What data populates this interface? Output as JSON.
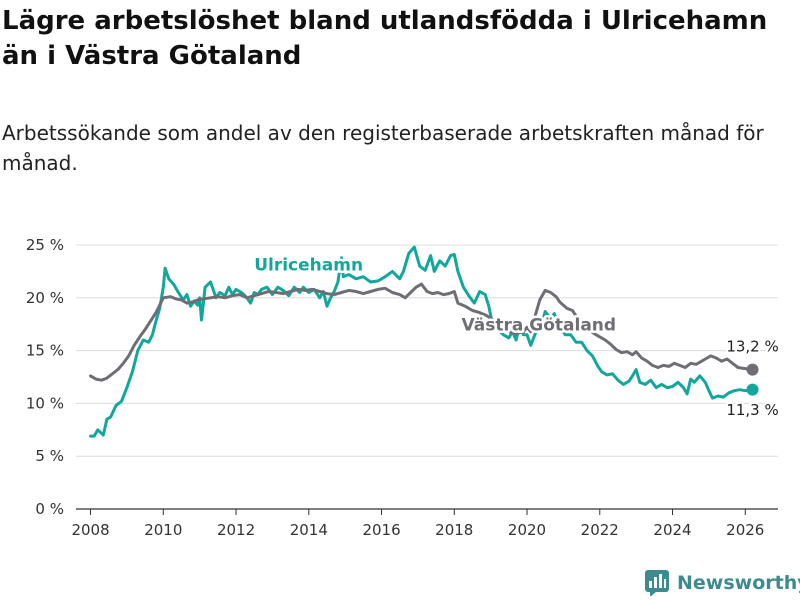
{
  "header": {
    "title": "Lägre arbetslöshet bland utlandsfödda i Ulricehamn än i Västra Götaland",
    "subtitle": "Arbetssökande som andel av den registerbaserade arbetskraften månad för månad."
  },
  "brand": {
    "name": "Newsworthy"
  },
  "chart_data": {
    "type": "line",
    "title": "Lägre arbetslöshet bland utlandsfödda i Ulricehamn än i Västra Götaland",
    "subtitle": "Arbetssökande som andel av den registerbaserade arbetskraften månad för månad.",
    "xlabel": "",
    "ylabel": "",
    "xlim": [
      2007.6,
      2026.9
    ],
    "ylim": [
      0,
      25
    ],
    "grid": true,
    "x_ticks": [
      2008,
      2010,
      2012,
      2014,
      2016,
      2018,
      2020,
      2022,
      2024,
      2026
    ],
    "x_tick_labels": [
      "2008",
      "2010",
      "2012",
      "2014",
      "2016",
      "2018",
      "2020",
      "2022",
      "2024",
      "2026"
    ],
    "y_ticks": [
      0,
      5,
      10,
      15,
      20,
      25
    ],
    "y_tick_labels": [
      "0 %",
      "5 %",
      "10 %",
      "15 %",
      "20 %",
      "25 %"
    ],
    "series": [
      {
        "name": "Ulricehamn",
        "color": "#12a79d",
        "label": "Ulricehamn",
        "end_label": "11,3 %",
        "points": [
          [
            2008.0,
            6.9
          ],
          [
            2008.1,
            6.9
          ],
          [
            2008.2,
            7.5
          ],
          [
            2008.35,
            7.0
          ],
          [
            2008.45,
            8.5
          ],
          [
            2008.55,
            8.7
          ],
          [
            2008.7,
            9.8
          ],
          [
            2008.85,
            10.2
          ],
          [
            2009.0,
            11.5
          ],
          [
            2009.15,
            13.0
          ],
          [
            2009.3,
            15.0
          ],
          [
            2009.45,
            16.0
          ],
          [
            2009.6,
            15.8
          ],
          [
            2009.7,
            16.5
          ],
          [
            2009.8,
            17.8
          ],
          [
            2009.9,
            19.0
          ],
          [
            2010.0,
            21.0
          ],
          [
            2010.05,
            22.8
          ],
          [
            2010.15,
            21.8
          ],
          [
            2010.3,
            21.2
          ],
          [
            2010.4,
            20.6
          ],
          [
            2010.55,
            19.8
          ],
          [
            2010.65,
            20.3
          ],
          [
            2010.75,
            19.2
          ],
          [
            2010.85,
            19.7
          ],
          [
            2010.95,
            19.3
          ],
          [
            2011.0,
            20.0
          ],
          [
            2011.05,
            17.9
          ],
          [
            2011.15,
            21.0
          ],
          [
            2011.3,
            21.5
          ],
          [
            2011.45,
            20.0
          ],
          [
            2011.55,
            20.5
          ],
          [
            2011.7,
            20.2
          ],
          [
            2011.8,
            21.0
          ],
          [
            2011.9,
            20.3
          ],
          [
            2012.0,
            20.8
          ],
          [
            2012.15,
            20.5
          ],
          [
            2012.3,
            20.0
          ],
          [
            2012.4,
            19.5
          ],
          [
            2012.5,
            20.5
          ],
          [
            2012.6,
            20.3
          ],
          [
            2012.7,
            20.8
          ],
          [
            2012.85,
            21.0
          ],
          [
            2013.0,
            20.3
          ],
          [
            2013.15,
            21.0
          ],
          [
            2013.3,
            20.7
          ],
          [
            2013.45,
            20.2
          ],
          [
            2013.6,
            21.0
          ],
          [
            2013.75,
            20.5
          ],
          [
            2013.85,
            21.0
          ],
          [
            2014.0,
            20.5
          ],
          [
            2014.15,
            20.8
          ],
          [
            2014.3,
            20.0
          ],
          [
            2014.4,
            20.6
          ],
          [
            2014.5,
            19.2
          ],
          [
            2014.6,
            20.0
          ],
          [
            2014.7,
            20.6
          ],
          [
            2014.8,
            21.5
          ],
          [
            2014.9,
            23.8
          ],
          [
            2014.95,
            22.0
          ],
          [
            2015.1,
            22.2
          ],
          [
            2015.3,
            21.8
          ],
          [
            2015.5,
            22.0
          ],
          [
            2015.7,
            21.5
          ],
          [
            2015.9,
            21.6
          ],
          [
            2016.1,
            22.0
          ],
          [
            2016.3,
            22.5
          ],
          [
            2016.5,
            21.8
          ],
          [
            2016.6,
            22.5
          ],
          [
            2016.75,
            24.2
          ],
          [
            2016.9,
            24.8
          ],
          [
            2017.05,
            23.0
          ],
          [
            2017.2,
            22.6
          ],
          [
            2017.35,
            24.0
          ],
          [
            2017.45,
            22.5
          ],
          [
            2017.6,
            23.5
          ],
          [
            2017.75,
            23.0
          ],
          [
            2017.9,
            24.0
          ],
          [
            2018.0,
            24.1
          ],
          [
            2018.1,
            22.5
          ],
          [
            2018.25,
            21.0
          ],
          [
            2018.4,
            20.2
          ],
          [
            2018.55,
            19.5
          ],
          [
            2018.7,
            20.6
          ],
          [
            2018.85,
            20.3
          ],
          [
            2018.95,
            19.2
          ],
          [
            2019.05,
            17.5
          ],
          [
            2019.2,
            17.0
          ],
          [
            2019.35,
            16.5
          ],
          [
            2019.5,
            16.2
          ],
          [
            2019.6,
            16.8
          ],
          [
            2019.7,
            16.0
          ],
          [
            2019.8,
            17.5
          ],
          [
            2019.9,
            16.5
          ],
          [
            2020.0,
            16.5
          ],
          [
            2020.1,
            15.5
          ],
          [
            2020.25,
            16.8
          ],
          [
            2020.4,
            17.5
          ],
          [
            2020.5,
            18.7
          ],
          [
            2020.65,
            18.0
          ],
          [
            2020.75,
            18.5
          ],
          [
            2020.85,
            17.5
          ],
          [
            2020.95,
            17.0
          ],
          [
            2021.05,
            16.5
          ],
          [
            2021.2,
            16.5
          ],
          [
            2021.35,
            15.8
          ],
          [
            2021.5,
            15.8
          ],
          [
            2021.65,
            15.0
          ],
          [
            2021.8,
            14.5
          ],
          [
            2021.95,
            13.5
          ],
          [
            2022.05,
            13.0
          ],
          [
            2022.2,
            12.7
          ],
          [
            2022.35,
            12.8
          ],
          [
            2022.5,
            12.2
          ],
          [
            2022.65,
            11.8
          ],
          [
            2022.8,
            12.1
          ],
          [
            2022.9,
            12.6
          ],
          [
            2023.0,
            13.2
          ],
          [
            2023.1,
            12.0
          ],
          [
            2023.25,
            11.8
          ],
          [
            2023.4,
            12.2
          ],
          [
            2023.55,
            11.5
          ],
          [
            2023.7,
            11.8
          ],
          [
            2023.85,
            11.5
          ],
          [
            2024.0,
            11.6
          ],
          [
            2024.15,
            12.0
          ],
          [
            2024.3,
            11.5
          ],
          [
            2024.4,
            10.9
          ],
          [
            2024.5,
            12.3
          ],
          [
            2024.6,
            12.0
          ],
          [
            2024.75,
            12.6
          ],
          [
            2024.9,
            12.0
          ],
          [
            2025.0,
            11.2
          ],
          [
            2025.1,
            10.5
          ],
          [
            2025.25,
            10.7
          ],
          [
            2025.4,
            10.6
          ],
          [
            2025.55,
            11.0
          ],
          [
            2025.7,
            11.2
          ],
          [
            2025.85,
            11.3
          ],
          [
            2026.0,
            11.2
          ],
          [
            2026.2,
            11.3
          ]
        ]
      },
      {
        "name": "Västra Götaland",
        "color": "#6e6e74",
        "label": "Västra Götaland",
        "end_label": "13,2 %",
        "points": [
          [
            2008.0,
            12.6
          ],
          [
            2008.15,
            12.3
          ],
          [
            2008.3,
            12.2
          ],
          [
            2008.45,
            12.4
          ],
          [
            2008.6,
            12.8
          ],
          [
            2008.75,
            13.2
          ],
          [
            2008.9,
            13.8
          ],
          [
            2009.05,
            14.5
          ],
          [
            2009.2,
            15.5
          ],
          [
            2009.35,
            16.3
          ],
          [
            2009.5,
            17.0
          ],
          [
            2009.65,
            17.8
          ],
          [
            2009.8,
            18.6
          ],
          [
            2009.9,
            19.3
          ],
          [
            2010.0,
            20.0
          ],
          [
            2010.2,
            20.1
          ],
          [
            2010.35,
            19.9
          ],
          [
            2010.5,
            19.8
          ],
          [
            2010.65,
            19.5
          ],
          [
            2010.8,
            19.6
          ],
          [
            2010.95,
            19.8
          ],
          [
            2011.1,
            19.9
          ],
          [
            2011.3,
            20.0
          ],
          [
            2011.5,
            20.1
          ],
          [
            2011.7,
            20.0
          ],
          [
            2011.9,
            20.2
          ],
          [
            2012.1,
            20.3
          ],
          [
            2012.3,
            20.0
          ],
          [
            2012.5,
            20.2
          ],
          [
            2012.7,
            20.4
          ],
          [
            2012.9,
            20.6
          ],
          [
            2013.1,
            20.5
          ],
          [
            2013.3,
            20.4
          ],
          [
            2013.5,
            20.6
          ],
          [
            2013.7,
            20.8
          ],
          [
            2013.9,
            20.7
          ],
          [
            2014.1,
            20.8
          ],
          [
            2014.3,
            20.6
          ],
          [
            2014.5,
            20.4
          ],
          [
            2014.7,
            20.3
          ],
          [
            2014.9,
            20.5
          ],
          [
            2015.1,
            20.7
          ],
          [
            2015.3,
            20.6
          ],
          [
            2015.5,
            20.4
          ],
          [
            2015.7,
            20.6
          ],
          [
            2015.9,
            20.8
          ],
          [
            2016.1,
            20.9
          ],
          [
            2016.3,
            20.5
          ],
          [
            2016.5,
            20.3
          ],
          [
            2016.65,
            20.0
          ],
          [
            2016.8,
            20.5
          ],
          [
            2016.95,
            21.0
          ],
          [
            2017.1,
            21.3
          ],
          [
            2017.25,
            20.6
          ],
          [
            2017.4,
            20.4
          ],
          [
            2017.55,
            20.5
          ],
          [
            2017.7,
            20.3
          ],
          [
            2017.85,
            20.4
          ],
          [
            2018.0,
            20.6
          ],
          [
            2018.1,
            19.5
          ],
          [
            2018.3,
            19.2
          ],
          [
            2018.5,
            18.8
          ],
          [
            2018.7,
            18.6
          ],
          [
            2018.9,
            18.3
          ],
          [
            2019.1,
            17.8
          ],
          [
            2019.3,
            17.2
          ],
          [
            2019.5,
            16.8
          ],
          [
            2019.7,
            16.6
          ],
          [
            2019.9,
            16.8
          ],
          [
            2020.0,
            17.2
          ],
          [
            2020.1,
            16.8
          ],
          [
            2020.2,
            18.0
          ],
          [
            2020.35,
            19.8
          ],
          [
            2020.5,
            20.7
          ],
          [
            2020.65,
            20.5
          ],
          [
            2020.8,
            20.1
          ],
          [
            2020.9,
            19.6
          ],
          [
            2021.0,
            19.3
          ],
          [
            2021.1,
            19.0
          ],
          [
            2021.25,
            18.8
          ],
          [
            2021.4,
            18.0
          ],
          [
            2021.55,
            17.5
          ],
          [
            2021.7,
            17.0
          ],
          [
            2021.85,
            16.6
          ],
          [
            2022.0,
            16.3
          ],
          [
            2022.15,
            16.0
          ],
          [
            2022.3,
            15.6
          ],
          [
            2022.45,
            15.1
          ],
          [
            2022.6,
            14.8
          ],
          [
            2022.75,
            14.9
          ],
          [
            2022.9,
            14.6
          ],
          [
            2023.0,
            14.9
          ],
          [
            2023.15,
            14.3
          ],
          [
            2023.3,
            14.0
          ],
          [
            2023.45,
            13.6
          ],
          [
            2023.6,
            13.4
          ],
          [
            2023.75,
            13.6
          ],
          [
            2023.9,
            13.5
          ],
          [
            2024.05,
            13.8
          ],
          [
            2024.2,
            13.6
          ],
          [
            2024.35,
            13.4
          ],
          [
            2024.5,
            13.8
          ],
          [
            2024.65,
            13.7
          ],
          [
            2024.8,
            14.0
          ],
          [
            2024.95,
            14.3
          ],
          [
            2025.05,
            14.5
          ],
          [
            2025.2,
            14.3
          ],
          [
            2025.35,
            14.0
          ],
          [
            2025.5,
            14.2
          ],
          [
            2025.65,
            13.8
          ],
          [
            2025.8,
            13.4
          ],
          [
            2026.0,
            13.3
          ],
          [
            2026.2,
            13.2
          ]
        ]
      }
    ]
  }
}
